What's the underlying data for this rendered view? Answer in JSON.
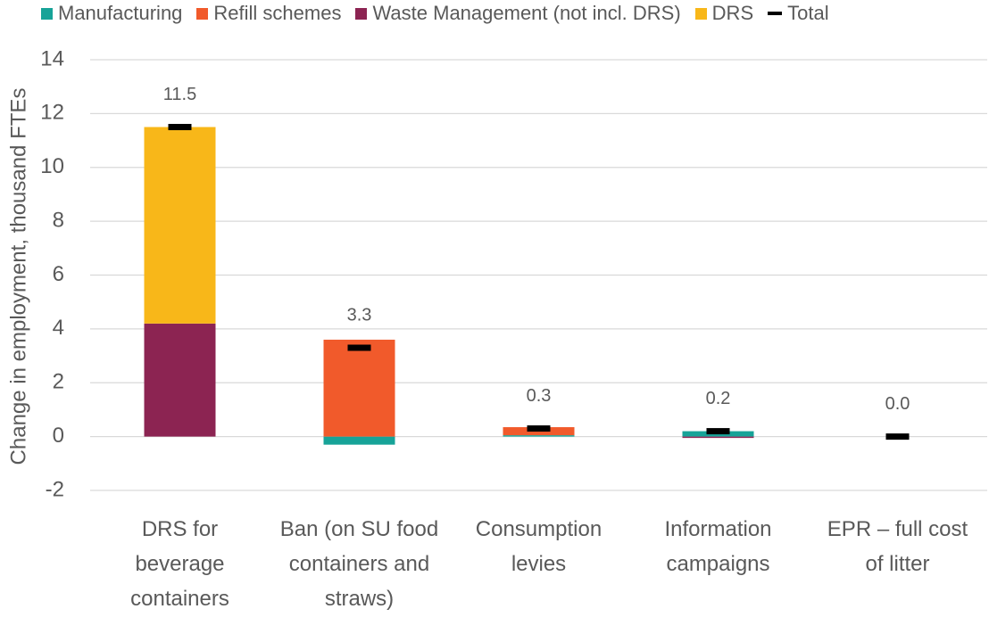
{
  "chart_data": {
    "type": "bar",
    "stacked": true,
    "y_label": "Change in employment, thousand FTEs",
    "categories": [
      "DRS for beverage containers",
      "Ban (on SU food containers and straws)",
      "Consumption levies",
      "Information campaigns",
      "EPR – full cost of litter"
    ],
    "series": [
      {
        "name": "Manufacturing",
        "color": "#17a398",
        "values": [
          0,
          -0.3,
          0.05,
          0.2,
          0
        ]
      },
      {
        "name": "Refill schemes",
        "color": "#f15a2b",
        "values": [
          0,
          3.6,
          0.3,
          0,
          0
        ]
      },
      {
        "name": "Waste Management (not incl. DRS)",
        "color": "#8c2452",
        "values": [
          4.2,
          0,
          0,
          -0.05,
          0
        ]
      },
      {
        "name": "DRS",
        "color": "#f8b719",
        "values": [
          7.3,
          0,
          0,
          0,
          0
        ]
      }
    ],
    "total": {
      "name": "Total",
      "color": "#000000",
      "values": [
        11.5,
        3.3,
        0.3,
        0.2,
        0
      ],
      "value_labels": [
        "11.5",
        "3.3",
        "0.3",
        "0.2",
        "0.0"
      ]
    },
    "ylim": [
      -2,
      14
    ],
    "yticks": [
      -2,
      0,
      2,
      4,
      6,
      8,
      10,
      12,
      14
    ],
    "grid": true
  }
}
